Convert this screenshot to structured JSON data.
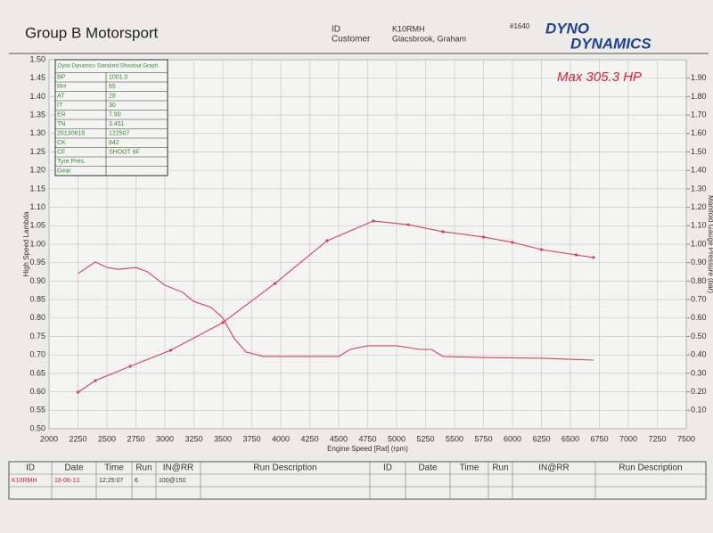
{
  "header": {
    "company": "Group B Motorsport",
    "id_label": "ID",
    "id_value": "K10RMH",
    "customer_label": "Customer",
    "customer_value": "Glacsbrook, Graham",
    "sheet_number": "#1640",
    "logo_top": "DYNO",
    "logo_bottom": "DYNAMICS"
  },
  "info_box": {
    "title": "Dyno Dynamics Standard Shootout Graph.",
    "rows": [
      [
        "BP",
        "1001.0"
      ],
      [
        "RH",
        "65"
      ],
      [
        "AT",
        "28"
      ],
      [
        "IT",
        "30"
      ],
      [
        "ER",
        "7.90"
      ],
      [
        "TN",
        "3.451"
      ],
      [
        "20130618",
        "122507"
      ],
      [
        "CK",
        "842"
      ],
      [
        "CF",
        "SHOOT 6F"
      ],
      [
        "Tyre Pres.",
        ""
      ],
      [
        "Gear",
        ""
      ]
    ]
  },
  "chart_data": {
    "type": "line",
    "annotation": "Max 305.3 HP",
    "x_label": "Engine Speed [Rat] (rpm)",
    "y_label": "High Speed Lambda",
    "y2_label": "Manifold Gauge Pressure (bar)",
    "xlim": [
      2000,
      7500
    ],
    "xticks": [
      2000,
      2250,
      2500,
      2750,
      3000,
      3250,
      3500,
      3750,
      4000,
      4250,
      4500,
      4750,
      5000,
      5250,
      5500,
      5750,
      6000,
      6250,
      6500,
      6750,
      7000,
      7250,
      7500
    ],
    "ylim": [
      0.5,
      1.5
    ],
    "yticks": [
      {
        "value": 0.5,
        "label": "0.50"
      },
      0.55,
      {
        "value": 0.6,
        "label": "0.60"
      },
      0.65,
      {
        "value": 0.7,
        "label": "0.70"
      },
      0.75,
      {
        "value": 0.8,
        "label": "0.80"
      },
      0.85,
      {
        "value": 0.9,
        "label": "0.90"
      },
      0.95,
      {
        "value": 1.0,
        "label": "1.00"
      },
      1.05,
      {
        "value": 1.1,
        "label": "1.10"
      },
      1.15,
      {
        "value": 1.2,
        "label": "1.20"
      },
      1.25,
      {
        "value": 1.3,
        "label": "1.30"
      },
      1.35,
      {
        "value": 1.4,
        "label": "1.40"
      },
      1.45,
      {
        "value": 1.5,
        "label": "1.50"
      }
    ],
    "y2lim": [
      0,
      2
    ],
    "y2ticks": [
      {
        "value": 0.1,
        "label": "0.10"
      },
      {
        "value": 0.2,
        "label": "0.20"
      },
      {
        "value": 0.3,
        "label": "0.30"
      },
      {
        "value": 0.4,
        "label": "0.40"
      },
      {
        "value": 0.5,
        "label": "0.50"
      },
      {
        "value": 0.6,
        "label": "0.60"
      },
      {
        "value": 0.7,
        "label": "0.70"
      },
      {
        "value": 0.8,
        "label": "0.80"
      },
      {
        "value": 0.9,
        "label": "0.90"
      },
      {
        "value": 1.0,
        "label": "1.00"
      },
      {
        "value": 1.1,
        "label": "1.10"
      },
      {
        "value": 1.2,
        "label": "1.20"
      },
      {
        "value": 1.3,
        "label": "1.30"
      },
      {
        "value": 1.4,
        "label": "1.40"
      },
      {
        "value": 1.5,
        "label": "1.50"
      },
      {
        "value": 1.6,
        "label": "1.60"
      },
      {
        "value": 1.7,
        "label": "1.70"
      },
      {
        "value": 1.8,
        "label": "1.80"
      },
      {
        "value": 1.9,
        "label": "1.90"
      }
    ],
    "grid": true,
    "series": [
      {
        "color": "#d8405a",
        "axis": "y",
        "markers": false,
        "x": [
          2250,
          2400,
          2500,
          2600,
          2750,
          2850,
          3000,
          3150,
          3250,
          3400,
          3500,
          3600,
          3700,
          3850,
          4000,
          4500,
          4600,
          4750,
          5000,
          5200,
          5300,
          5400,
          5750,
          6250,
          6700
        ],
        "values": [
          0.92,
          0.952,
          0.937,
          0.932,
          0.937,
          0.925,
          0.889,
          0.87,
          0.845,
          0.829,
          0.8,
          0.744,
          0.708,
          0.696,
          0.696,
          0.696,
          0.715,
          0.725,
          0.725,
          0.715,
          0.715,
          0.696,
          0.693,
          0.691,
          0.686
        ]
      },
      {
        "color": "#d8405a",
        "axis": "y2",
        "markers": true,
        "x": [
          2250,
          2400,
          2700,
          3050,
          3500,
          3950,
          4400,
          4800,
          5100,
          5400,
          5750,
          6000,
          6250,
          6550,
          6700
        ],
        "values": [
          0.198,
          0.261,
          0.338,
          0.425,
          0.575,
          0.787,
          1.019,
          1.126,
          1.106,
          1.068,
          1.039,
          1.01,
          0.971,
          0.942,
          0.928
        ]
      }
    ]
  },
  "run_table": {
    "headers": [
      "ID",
      "Date",
      "Time",
      "Run",
      "IN@RR",
      "Run Description",
      "ID",
      "Date",
      "Time",
      "Run",
      "IN@RR",
      "Run Description"
    ],
    "rows": [
      [
        "K10RMH",
        "18-06-13",
        "12:25:07",
        "6",
        "100@150",
        "",
        "",
        "",
        "",
        "",
        "",
        ""
      ]
    ]
  }
}
